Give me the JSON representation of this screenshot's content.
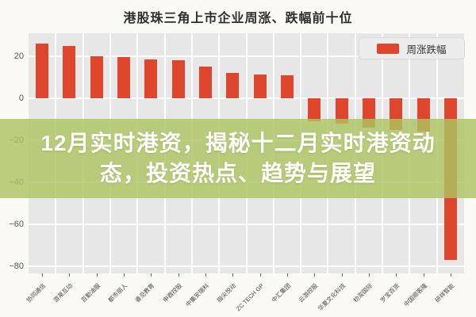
{
  "title": "港股珠三角上市企业周涨、跌幅前十位",
  "legend": {
    "label": "周涨跌幅",
    "swatch_color": "#df462e"
  },
  "overlay": {
    "line1": "12月实时港资，揭秘十二月实时港资动",
    "line2": "态，投资热点、趋势与展望",
    "bg_color": "#adc562",
    "text_color": "#ffffff"
  },
  "chart_data": {
    "type": "bar",
    "title": "港股珠三角上市企业周涨、跌幅前十位",
    "series_name": "周涨跌幅",
    "categories": [
      "协同通信",
      "游莱互动",
      "百勤油服",
      "都市丽人",
      "睿见教育",
      "申酉控股",
      "中集安瑞科",
      "指尖悦动",
      "ZC TECH GP",
      "中汇集团",
      "云游控股",
      "华夏文化科技",
      "朸浚国际",
      "岁宝百货",
      "中国顺客隆",
      "研祥智能"
    ],
    "values": [
      26,
      25,
      20,
      19.5,
      18.5,
      18,
      15,
      12,
      11.5,
      11,
      -11,
      -12,
      -14,
      -15,
      -16,
      -77
    ],
    "xlabel": "",
    "ylabel": "",
    "ylim": [
      -83.4,
      31
    ],
    "yticks": [
      20,
      0,
      -20,
      -40,
      -60,
      -80
    ],
    "bar_color": "#df462e",
    "plot_bg": "#e7e7e7",
    "grid": true,
    "legend_position": "top-right"
  }
}
